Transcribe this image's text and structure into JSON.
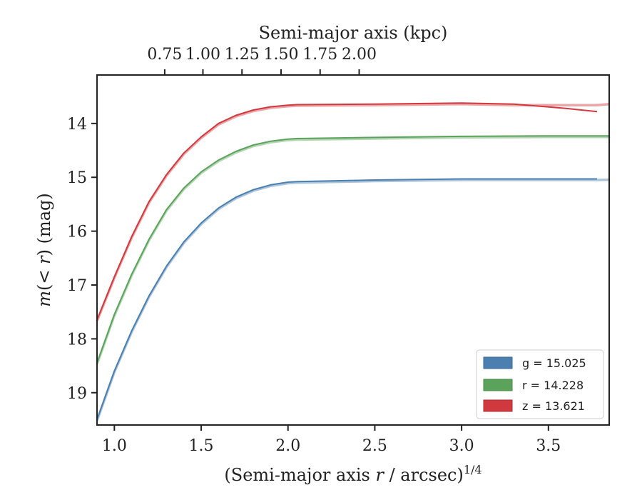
{
  "chart_data": {
    "type": "line",
    "top_xlabel": "Semi-major axis (kpc)",
    "xlabel_main": "(Semi-major axis ",
    "xlabel_var": "r",
    "xlabel_unit": " / arcsec)",
    "xlabel_exp": "1/4",
    "ylabel_m": "m",
    "ylabel_inner": "(< ",
    "ylabel_r": "r",
    "ylabel_tail": ") (mag)",
    "xlim": [
      0.9,
      3.85
    ],
    "ylim": [
      19.6,
      13.1
    ],
    "y_inverted": true,
    "x_ticks": [
      1.0,
      1.5,
      2.0,
      2.5,
      3.0,
      3.5
    ],
    "x_tick_labels": [
      "1.0",
      "1.5",
      "2.0",
      "2.5",
      "3.0",
      "3.5"
    ],
    "y_ticks": [
      14,
      15,
      16,
      17,
      18,
      19
    ],
    "y_tick_labels": [
      "14",
      "15",
      "16",
      "17",
      "18",
      "19"
    ],
    "top_ticks": [
      0.75,
      1.0,
      1.25,
      1.5,
      1.75,
      2.0
    ],
    "top_tick_labels": [
      "0.75",
      "1.00",
      "1.25",
      "1.50",
      "1.75",
      "2.00"
    ],
    "top_tick_positions": [
      1.29,
      1.51,
      1.735,
      1.96,
      2.185,
      2.41
    ],
    "grid": false,
    "legend_position": "lower-right",
    "series": [
      {
        "band": "g",
        "legend_label": "g = 15.025",
        "color": "#4a7fb0",
        "x": [
          0.9,
          1.0,
          1.1,
          1.2,
          1.3,
          1.4,
          1.5,
          1.6,
          1.7,
          1.8,
          1.9,
          2.0,
          2.05,
          2.2,
          2.5,
          3.0,
          3.5,
          3.78
        ],
        "y": [
          19.5,
          18.6,
          17.85,
          17.2,
          16.65,
          16.2,
          15.85,
          15.57,
          15.37,
          15.23,
          15.14,
          15.09,
          15.08,
          15.07,
          15.05,
          15.03,
          15.03,
          15.03
        ],
        "model_x_end": 3.85,
        "model_y_end": 15.025
      },
      {
        "band": "r",
        "legend_label": "r = 14.228",
        "color": "#5ba35b",
        "x": [
          0.9,
          1.0,
          1.1,
          1.2,
          1.3,
          1.4,
          1.5,
          1.6,
          1.7,
          1.8,
          1.9,
          2.0,
          2.05,
          2.5,
          3.0,
          3.5,
          3.85
        ],
        "y": [
          18.45,
          17.55,
          16.8,
          16.15,
          15.6,
          15.2,
          14.9,
          14.68,
          14.52,
          14.4,
          14.33,
          14.29,
          14.28,
          14.26,
          14.24,
          14.23,
          14.23
        ],
        "model_x_end": 3.85,
        "model_y_end": 14.228
      },
      {
        "band": "z",
        "legend_label": "z = 13.621",
        "color": "#d03a3f",
        "x": [
          0.9,
          1.0,
          1.1,
          1.2,
          1.3,
          1.4,
          1.5,
          1.6,
          1.7,
          1.8,
          1.9,
          2.0,
          2.05,
          2.5,
          3.0,
          3.3,
          3.6,
          3.78
        ],
        "y": [
          17.65,
          16.85,
          16.1,
          15.45,
          14.95,
          14.55,
          14.25,
          14.0,
          13.85,
          13.75,
          13.69,
          13.66,
          13.65,
          13.64,
          13.62,
          13.64,
          13.72,
          13.78
        ],
        "model_x_end": 3.85,
        "model_y_end": 13.621
      }
    ]
  }
}
